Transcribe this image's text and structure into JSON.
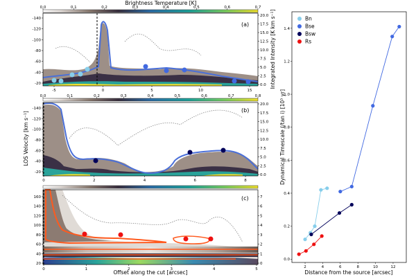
{
  "figure": {
    "top_cbar_label": "Brightness Temperature [K]",
    "top_cbar_ticks": [
      "0.0",
      "0.1",
      "0.2",
      "0.3",
      "0.4",
      "0.5",
      "0.6",
      "0.7"
    ],
    "left_ylabel": "LOS Velocity [km s⁻¹]",
    "bottom_xlabel": "Offset along the cut [arcsec]",
    "panel_a_right_label": "Integrated Intensity [K km s⁻¹]",
    "scatter_ylabel": "Dynamical Timescale (/tan i) [10³ yr]",
    "scatter_xlabel": "Distance from the source [arcsec]",
    "colors": {
      "bn": "#87ceeb",
      "bse": "#4169e1",
      "bsw": "#00005a",
      "rs": "#ee1111",
      "blue_contour": "#4a6fd8",
      "red_contour": "#ff5a1e"
    }
  },
  "panels": [
    {
      "letter": "(a)",
      "y_ticks": [
        "-140",
        "-120",
        "-100",
        "-80",
        "-60",
        "-40",
        "-20"
      ],
      "x_ticks": [
        "-5",
        "0",
        "5",
        "10",
        "15"
      ],
      "right_ticks": [
        "20.0",
        "17.5",
        "15.0",
        "12.5",
        "10.0",
        "7.5",
        "5.0",
        "2.5",
        "0.0"
      ],
      "cbar_ticks": [
        "0.0",
        "0.1",
        "0.2",
        "0.3",
        "0.4",
        "0.5",
        "0.6",
        "0.7"
      ]
    },
    {
      "letter": "(b)",
      "y_ticks": [
        "-140",
        "-120",
        "-100",
        "-80",
        "-60",
        "-40",
        "-20"
      ],
      "x_ticks": [
        "0",
        "2",
        "4",
        "6",
        "8"
      ],
      "right_ticks": [
        "20.0",
        "17.5",
        "15.0",
        "12.5",
        "10.0",
        "7.5",
        "5.0",
        "2.5",
        "0.0"
      ],
      "cbar_ticks": [
        "0.0",
        "0.1",
        "0.2",
        "0.3",
        "0.4",
        "0.5",
        "0.6",
        "0.7",
        "0.8"
      ]
    },
    {
      "letter": "(c)",
      "y_ticks": [
        "160",
        "140",
        "120",
        "100",
        "80",
        "60",
        "40",
        "20"
      ],
      "x_ticks": [
        "0",
        "1",
        "2",
        "3",
        "4",
        "5"
      ],
      "right_ticks": [
        "7",
        "6",
        "5",
        "4",
        "3",
        "2",
        "1",
        "0"
      ]
    }
  ],
  "chart_data": {
    "type": "scatter",
    "title": "",
    "xlabel": "Distance from the source [arcsec]",
    "ylabel": "Dynamical Timescale (/tan i) [10³ yr]",
    "xlim": [
      0.5,
      13.5
    ],
    "ylim": [
      -0.02,
      1.5
    ],
    "x_ticks": [
      2,
      4,
      6,
      8,
      10,
      12
    ],
    "y_ticks": [
      0.0,
      0.2,
      0.4,
      0.6,
      0.8,
      1.0,
      1.2,
      1.4
    ],
    "legend_position": "top-left",
    "series": [
      {
        "name": "Bn",
        "color": "#87ceeb",
        "points": [
          [
            2.0,
            0.12
          ],
          [
            2.6,
            0.16
          ],
          [
            3.1,
            0.2
          ],
          [
            3.8,
            0.42
          ],
          [
            4.5,
            0.43
          ]
        ]
      },
      {
        "name": "Bse",
        "color": "#4169e1",
        "points": [
          [
            6.0,
            0.41
          ],
          [
            7.3,
            0.44
          ],
          [
            9.7,
            0.93
          ],
          [
            11.9,
            1.35
          ],
          [
            12.7,
            1.41
          ]
        ]
      },
      {
        "name": "Bsw",
        "color": "#00005a",
        "points": [
          [
            2.7,
            0.15
          ],
          [
            5.9,
            0.28
          ],
          [
            7.3,
            0.33
          ]
        ]
      },
      {
        "name": "Rs",
        "color": "#ee1111",
        "points": [
          [
            1.3,
            0.03
          ],
          [
            2.1,
            0.05
          ],
          [
            3.0,
            0.09
          ],
          [
            3.9,
            0.14
          ]
        ]
      }
    ]
  }
}
